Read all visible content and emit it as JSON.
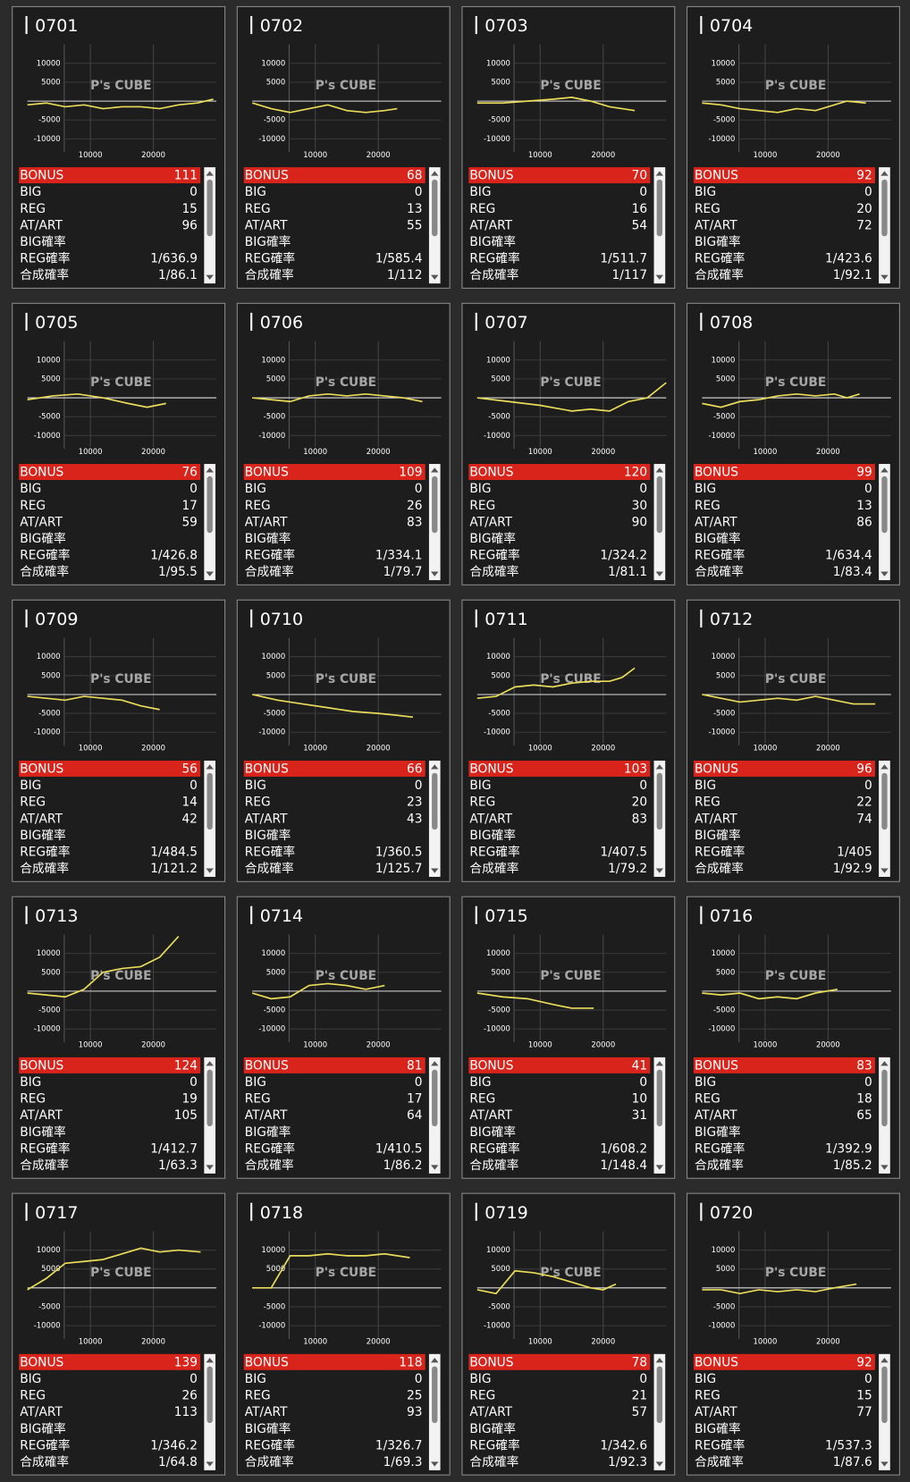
{
  "watermark": "P's CUBE",
  "axes": {
    "xlim": [
      0,
      30000
    ],
    "xticks": [
      10000,
      20000
    ],
    "ylim": [
      -13000,
      15000
    ],
    "yticks": [
      10000,
      5000,
      -5000,
      -10000
    ]
  },
  "row_labels": [
    "BONUS",
    "BIG",
    "REG",
    "AT/ART",
    "BIG確率",
    "REG確率",
    "合成確率"
  ],
  "panels": [
    {
      "title": "0701",
      "x": [
        0,
        3000,
        6000,
        9000,
        12000,
        15000,
        18000,
        21000,
        24000,
        27000,
        29500
      ],
      "y": [
        -1000,
        -500,
        -1500,
        -1000,
        -2000,
        -1500,
        -1500,
        -2000,
        -1000,
        -500,
        500
      ],
      "values": [
        111,
        0,
        15,
        96,
        null,
        "1/636.9",
        "1/86.1"
      ]
    },
    {
      "title": "0702",
      "x": [
        0,
        3000,
        6000,
        9000,
        12000,
        15000,
        18000,
        21000,
        23000
      ],
      "y": [
        -500,
        -2000,
        -3000,
        -2000,
        -1000,
        -2500,
        -3000,
        -2500,
        -2000
      ],
      "values": [
        68,
        0,
        13,
        55,
        null,
        "1/585.4",
        "1/112"
      ]
    },
    {
      "title": "0703",
      "x": [
        0,
        4000,
        8000,
        12000,
        15000,
        18000,
        21000,
        25000
      ],
      "y": [
        -500,
        -500,
        0,
        500,
        1000,
        0,
        -1500,
        -2500
      ],
      "values": [
        70,
        0,
        16,
        54,
        null,
        "1/511.7",
        "1/117"
      ]
    },
    {
      "title": "0704",
      "x": [
        0,
        3000,
        6000,
        9000,
        12000,
        15000,
        18000,
        21000,
        23000,
        26000
      ],
      "y": [
        -500,
        -1000,
        -2000,
        -2500,
        -3000,
        -2000,
        -2500,
        -1000,
        0,
        -500
      ],
      "values": [
        92,
        0,
        20,
        72,
        null,
        "1/423.6",
        "1/92.1"
      ]
    },
    {
      "title": "0705",
      "x": [
        0,
        4000,
        8000,
        12000,
        16000,
        19000,
        22000
      ],
      "y": [
        -500,
        500,
        1000,
        0,
        -1500,
        -2500,
        -1500
      ],
      "values": [
        76,
        0,
        17,
        59,
        null,
        "1/426.8",
        "1/95.5"
      ]
    },
    {
      "title": "0706",
      "x": [
        0,
        3000,
        6000,
        9000,
        12000,
        15000,
        18000,
        21000,
        24000,
        27000
      ],
      "y": [
        0,
        -500,
        -1000,
        500,
        1000,
        500,
        1000,
        500,
        0,
        -1000
      ],
      "values": [
        109,
        0,
        26,
        83,
        null,
        "1/334.1",
        "1/79.7"
      ]
    },
    {
      "title": "0707",
      "x": [
        0,
        5000,
        10000,
        15000,
        18000,
        21000,
        24000,
        27000,
        30000
      ],
      "y": [
        0,
        -1000,
        -2000,
        -3500,
        -3000,
        -3500,
        -1000,
        0,
        4000
      ],
      "values": [
        120,
        0,
        30,
        90,
        null,
        "1/324.2",
        "1/81.1"
      ]
    },
    {
      "title": "0708",
      "x": [
        0,
        3000,
        6000,
        9000,
        12000,
        15000,
        18000,
        21000,
        23000,
        25000
      ],
      "y": [
        -1500,
        -2500,
        -1000,
        -500,
        500,
        1000,
        500,
        1000,
        0,
        1000
      ],
      "values": [
        99,
        0,
        13,
        86,
        null,
        "1/634.4",
        "1/83.4"
      ]
    },
    {
      "title": "0709",
      "x": [
        0,
        3000,
        6000,
        9000,
        12000,
        15000,
        18000,
        21000
      ],
      "y": [
        -500,
        -1000,
        -1500,
        -500,
        -1000,
        -1500,
        -3000,
        -4000
      ],
      "values": [
        56,
        0,
        14,
        42,
        null,
        "1/484.5",
        "1/121.2"
      ]
    },
    {
      "title": "0710",
      "x": [
        0,
        4000,
        8000,
        12000,
        16000,
        20000,
        23000,
        25500
      ],
      "y": [
        0,
        -1500,
        -2500,
        -3500,
        -4500,
        -5000,
        -5500,
        -6000
      ],
      "values": [
        66,
        0,
        23,
        43,
        null,
        "1/360.5",
        "1/125.7"
      ]
    },
    {
      "title": "0711",
      "x": [
        0,
        3000,
        6000,
        9000,
        12000,
        15000,
        18000,
        21000,
        23000,
        25000
      ],
      "y": [
        -1000,
        -500,
        2000,
        2500,
        2000,
        3000,
        3500,
        3500,
        4500,
        7000
      ],
      "values": [
        103,
        0,
        20,
        83,
        null,
        "1/407.5",
        "1/79.2"
      ]
    },
    {
      "title": "0712",
      "x": [
        0,
        3000,
        6000,
        9000,
        12000,
        15000,
        18000,
        21000,
        24000,
        27500
      ],
      "y": [
        0,
        -1000,
        -2000,
        -1500,
        -1000,
        -1500,
        -500,
        -1500,
        -2500,
        -2500
      ],
      "values": [
        96,
        0,
        22,
        74,
        null,
        "1/405",
        "1/92.9"
      ]
    },
    {
      "title": "0713",
      "x": [
        0,
        3000,
        6000,
        9000,
        12000,
        15000,
        18000,
        21000,
        24000
      ],
      "y": [
        -500,
        -1000,
        -1500,
        500,
        5000,
        6000,
        6500,
        9000,
        14500
      ],
      "values": [
        124,
        0,
        19,
        105,
        null,
        "1/412.7",
        "1/63.3"
      ]
    },
    {
      "title": "0714",
      "x": [
        0,
        3000,
        6000,
        9000,
        12000,
        15000,
        18000,
        21000
      ],
      "y": [
        -500,
        -2000,
        -1500,
        1500,
        2000,
        1500,
        500,
        1500
      ],
      "values": [
        81,
        0,
        17,
        64,
        null,
        "1/410.5",
        "1/86.2"
      ]
    },
    {
      "title": "0715",
      "x": [
        0,
        4000,
        8000,
        12000,
        15000,
        18500
      ],
      "y": [
        -500,
        -1500,
        -2000,
        -3500,
        -4500,
        -4500
      ],
      "values": [
        41,
        0,
        10,
        31,
        null,
        "1/608.2",
        "1/148.4"
      ]
    },
    {
      "title": "0716",
      "x": [
        0,
        3000,
        6000,
        9000,
        12000,
        15000,
        18000,
        21500
      ],
      "y": [
        -500,
        -1000,
        -500,
        -2000,
        -1500,
        -2000,
        -500,
        500
      ],
      "values": [
        83,
        0,
        18,
        65,
        null,
        "1/392.9",
        "1/85.2"
      ]
    },
    {
      "title": "0717",
      "x": [
        0,
        3000,
        6000,
        9000,
        12000,
        15000,
        18000,
        21000,
        24000,
        27500
      ],
      "y": [
        -500,
        2500,
        6500,
        7000,
        7500,
        9000,
        10500,
        9500,
        10000,
        9500
      ],
      "values": [
        139,
        0,
        26,
        113,
        null,
        "1/346.2",
        "1/64.8"
      ]
    },
    {
      "title": "0718",
      "x": [
        0,
        3000,
        6000,
        9000,
        12000,
        15000,
        18000,
        21000,
        25000
      ],
      "y": [
        0,
        0,
        8500,
        8500,
        9000,
        8500,
        8500,
        9000,
        8000
      ],
      "values": [
        118,
        0,
        25,
        93,
        null,
        "1/326.7",
        "1/69.3"
      ]
    },
    {
      "title": "0719",
      "x": [
        0,
        3000,
        6000,
        9000,
        12000,
        15000,
        18000,
        20000,
        22000
      ],
      "y": [
        -500,
        -1500,
        4500,
        4000,
        3000,
        1500,
        0,
        -500,
        1000
      ],
      "values": [
        78,
        0,
        21,
        57,
        null,
        "1/342.6",
        "1/92.3"
      ]
    },
    {
      "title": "0720",
      "x": [
        0,
        3000,
        6000,
        9000,
        12000,
        15000,
        18000,
        21000,
        24500
      ],
      "y": [
        -500,
        -500,
        -1500,
        -500,
        -1000,
        -500,
        -1000,
        0,
        1000
      ],
      "values": [
        92,
        0,
        15,
        77,
        null,
        "1/537.3",
        "1/87.6"
      ]
    }
  ]
}
